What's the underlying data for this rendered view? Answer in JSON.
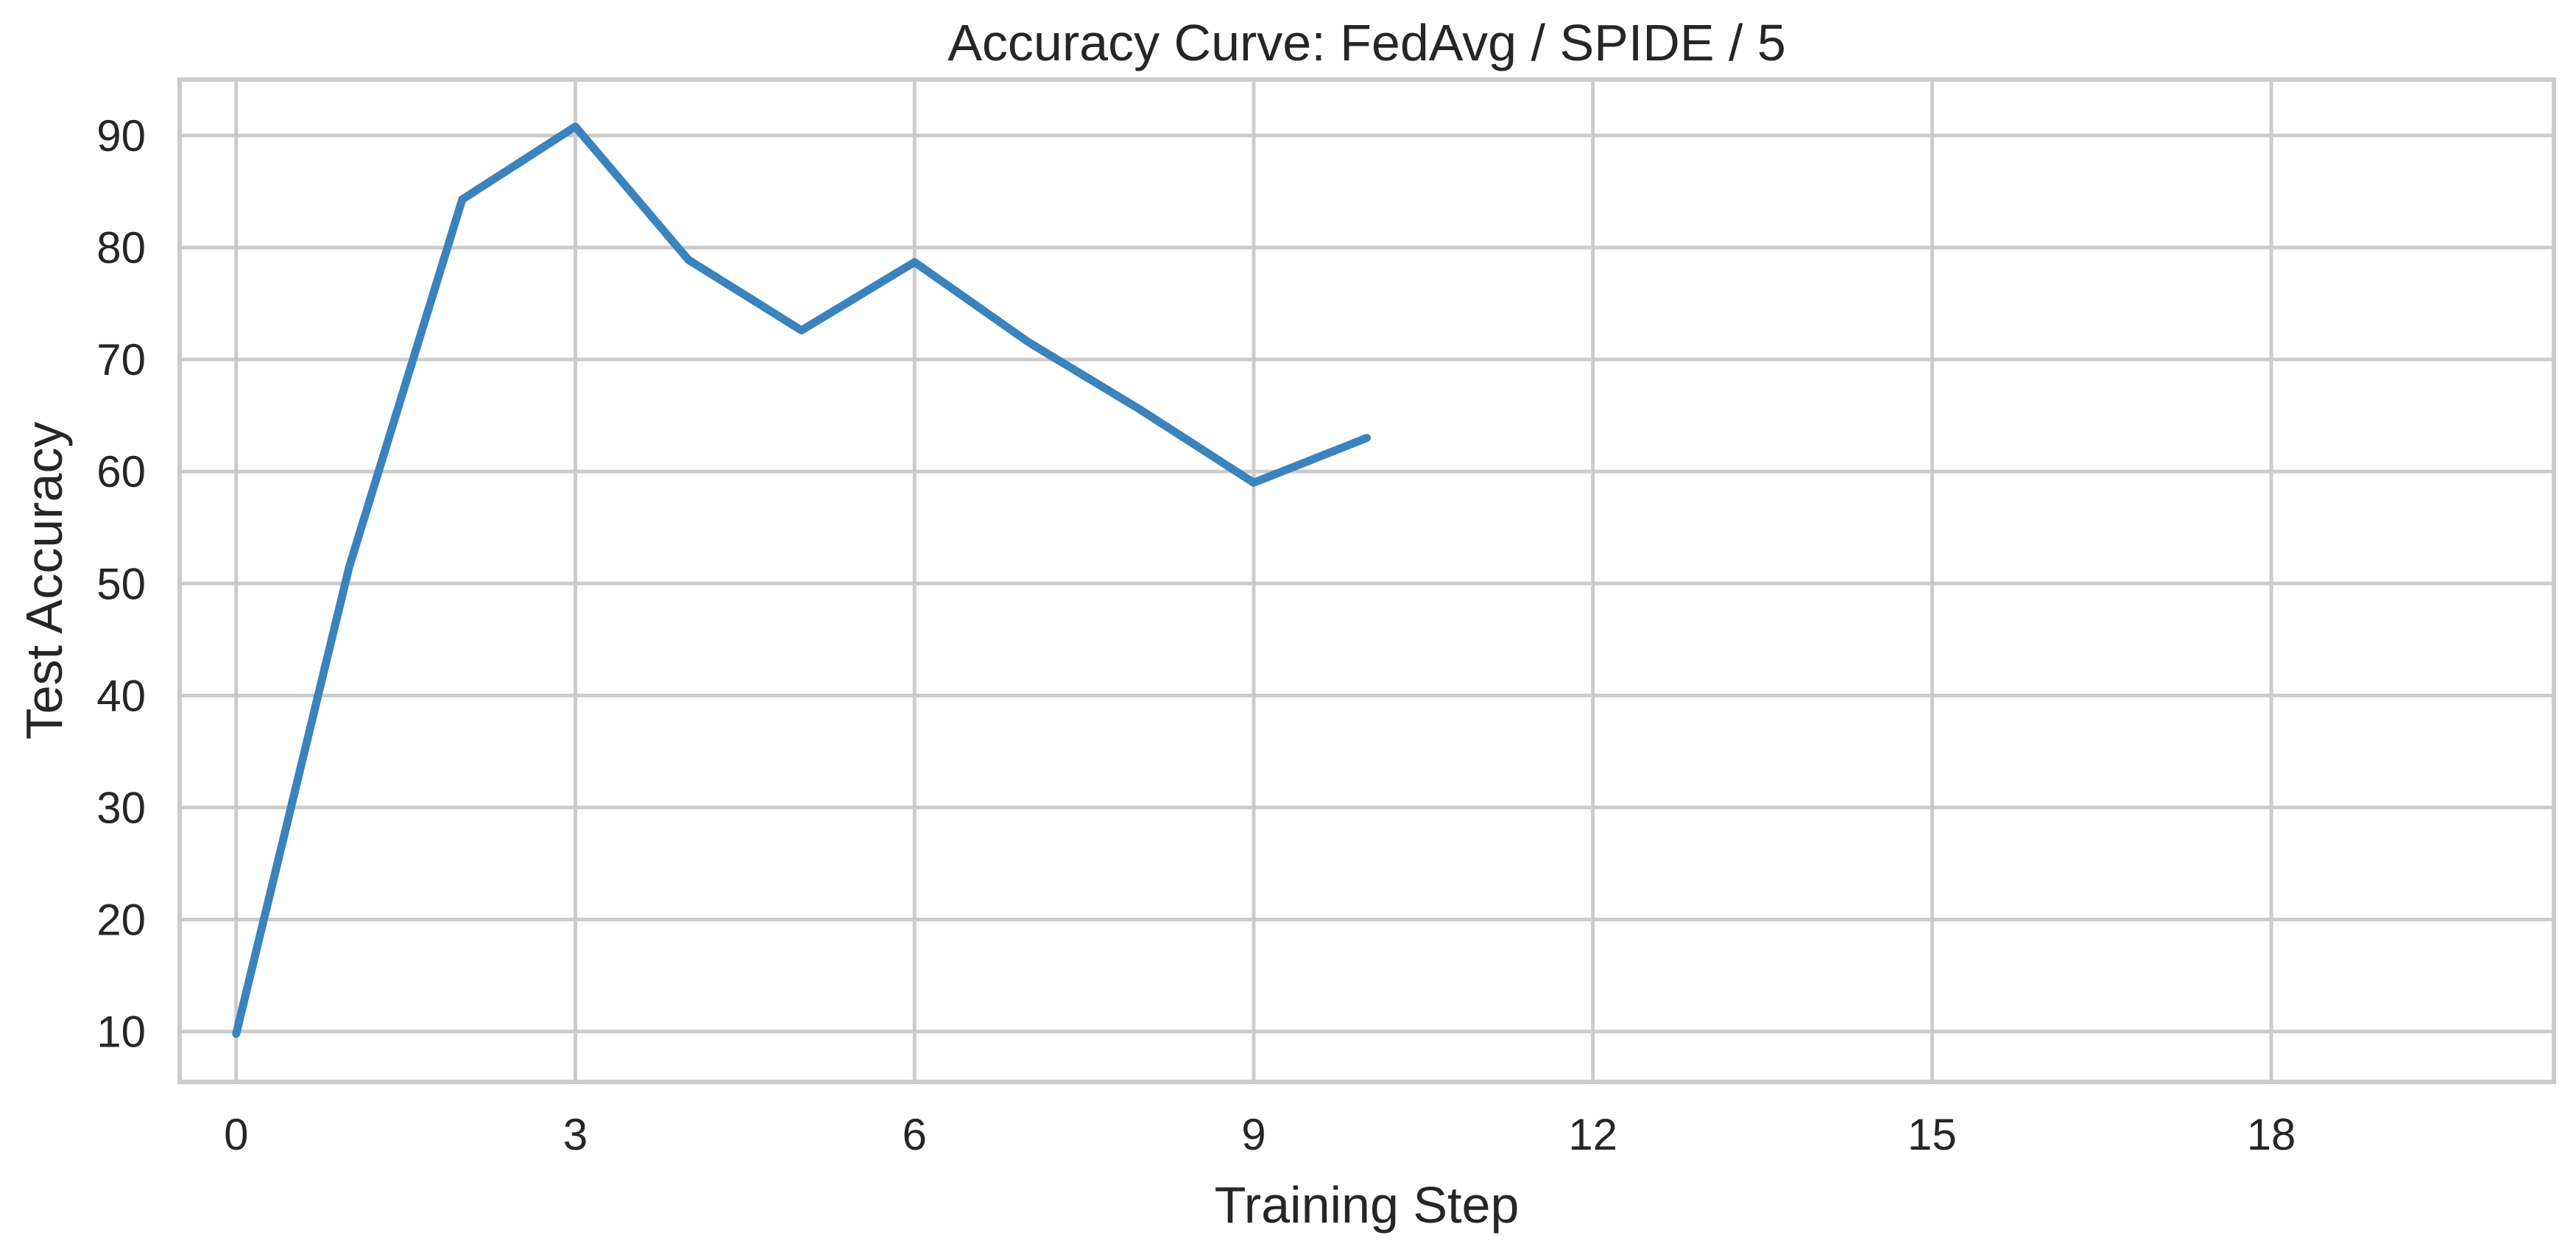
{
  "chart_data": {
    "type": "line",
    "title": "Accuracy Curve: FedAvg / SPIDE / 5",
    "xlabel": "Training Step",
    "ylabel": "Test Accuracy",
    "xlim": [
      -0.5,
      20.5
    ],
    "ylim": [
      5.5,
      95
    ],
    "xticks": [
      0,
      3,
      6,
      9,
      12,
      15,
      18
    ],
    "yticks": [
      10,
      20,
      30,
      40,
      50,
      60,
      70,
      80,
      90
    ],
    "grid": true,
    "legend": "none",
    "series": [
      {
        "color": "#3a83bd",
        "x": [
          0,
          1,
          2,
          3,
          4,
          5,
          6,
          7,
          8,
          9,
          10
        ],
        "y": [
          9.8,
          51.5,
          84.3,
          90.8,
          78.9,
          72.6,
          78.7,
          71.6,
          65.5,
          59.0,
          63.0
        ]
      }
    ]
  }
}
